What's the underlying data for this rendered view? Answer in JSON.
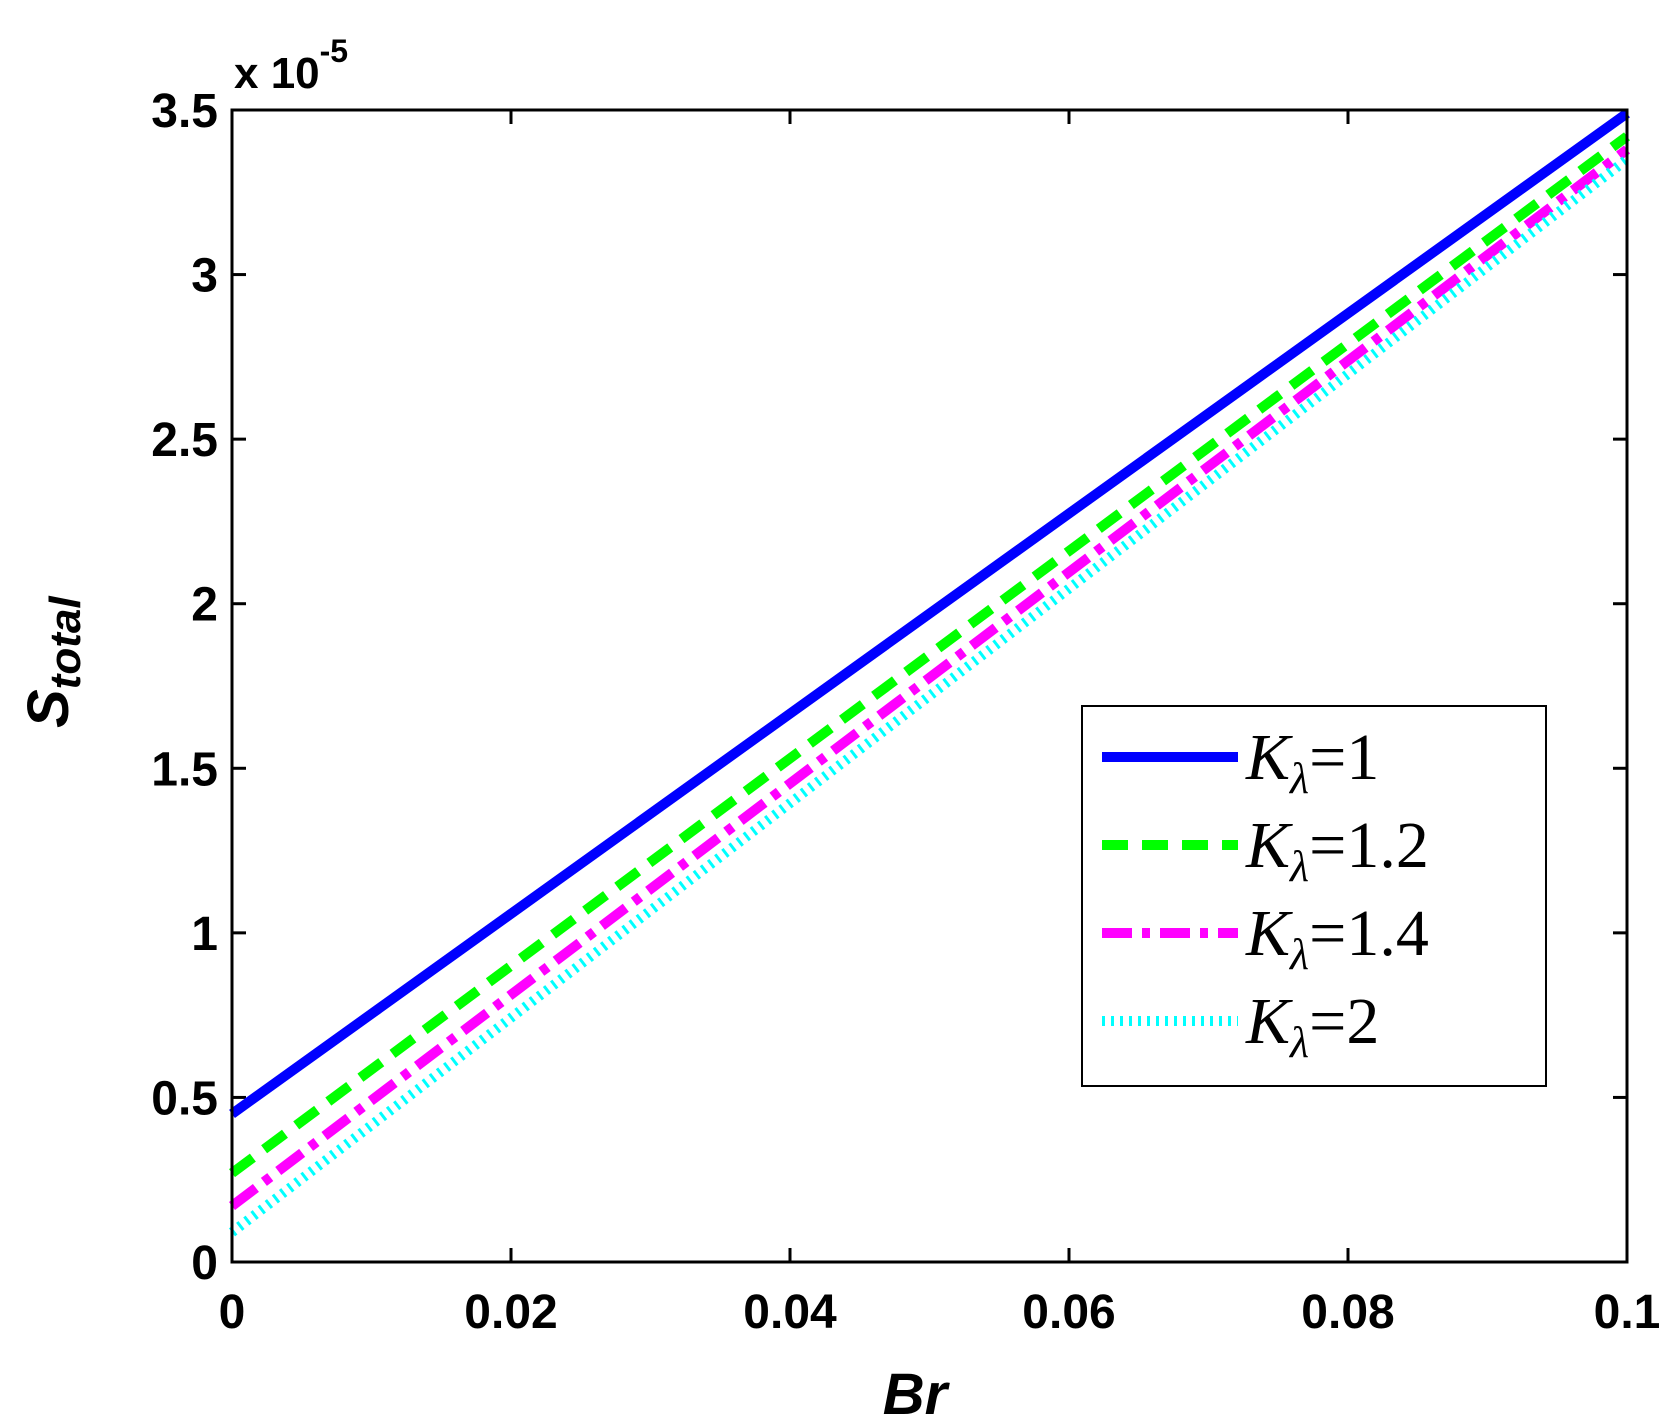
{
  "chart_data": {
    "type": "line",
    "xlabel": "Br",
    "ylabel_main": "S",
    "ylabel_sub": "total",
    "y_multiplier_base": "x 10",
    "y_multiplier_exp": "-5",
    "xlim": [
      0,
      0.1
    ],
    "ylim": [
      0,
      3.5
    ],
    "x_ticks": [
      0,
      0.02,
      0.04,
      0.06,
      0.08,
      0.1
    ],
    "x_tick_labels": [
      "0",
      "0.02",
      "0.04",
      "0.06",
      "0.08",
      "0.1"
    ],
    "y_ticks": [
      0,
      0.5,
      1,
      1.5,
      2,
      2.5,
      3,
      3.5
    ],
    "y_tick_labels": [
      "0",
      "0.5",
      "1",
      "1.5",
      "2",
      "2.5",
      "3",
      "3.5"
    ],
    "grid": false,
    "legend_position": "lower-right",
    "legend_symbol": "K",
    "legend_subscript": "λ",
    "series": [
      {
        "name": "=1",
        "x": [
          0,
          0.1
        ],
        "y": [
          0.45,
          3.49
        ],
        "color": "#0000ff",
        "style": "solid"
      },
      {
        "name": "=1.2",
        "x": [
          0,
          0.1
        ],
        "y": [
          0.27,
          3.42
        ],
        "color": "#00ff00",
        "style": "dashed"
      },
      {
        "name": "=1.4",
        "x": [
          0,
          0.1
        ],
        "y": [
          0.17,
          3.38
        ],
        "color": "#ff00ff",
        "style": "dashdot"
      },
      {
        "name": "=2",
        "x": [
          0,
          0.1
        ],
        "y": [
          0.09,
          3.35
        ],
        "color": "#00ffff",
        "style": "dotted"
      }
    ]
  }
}
